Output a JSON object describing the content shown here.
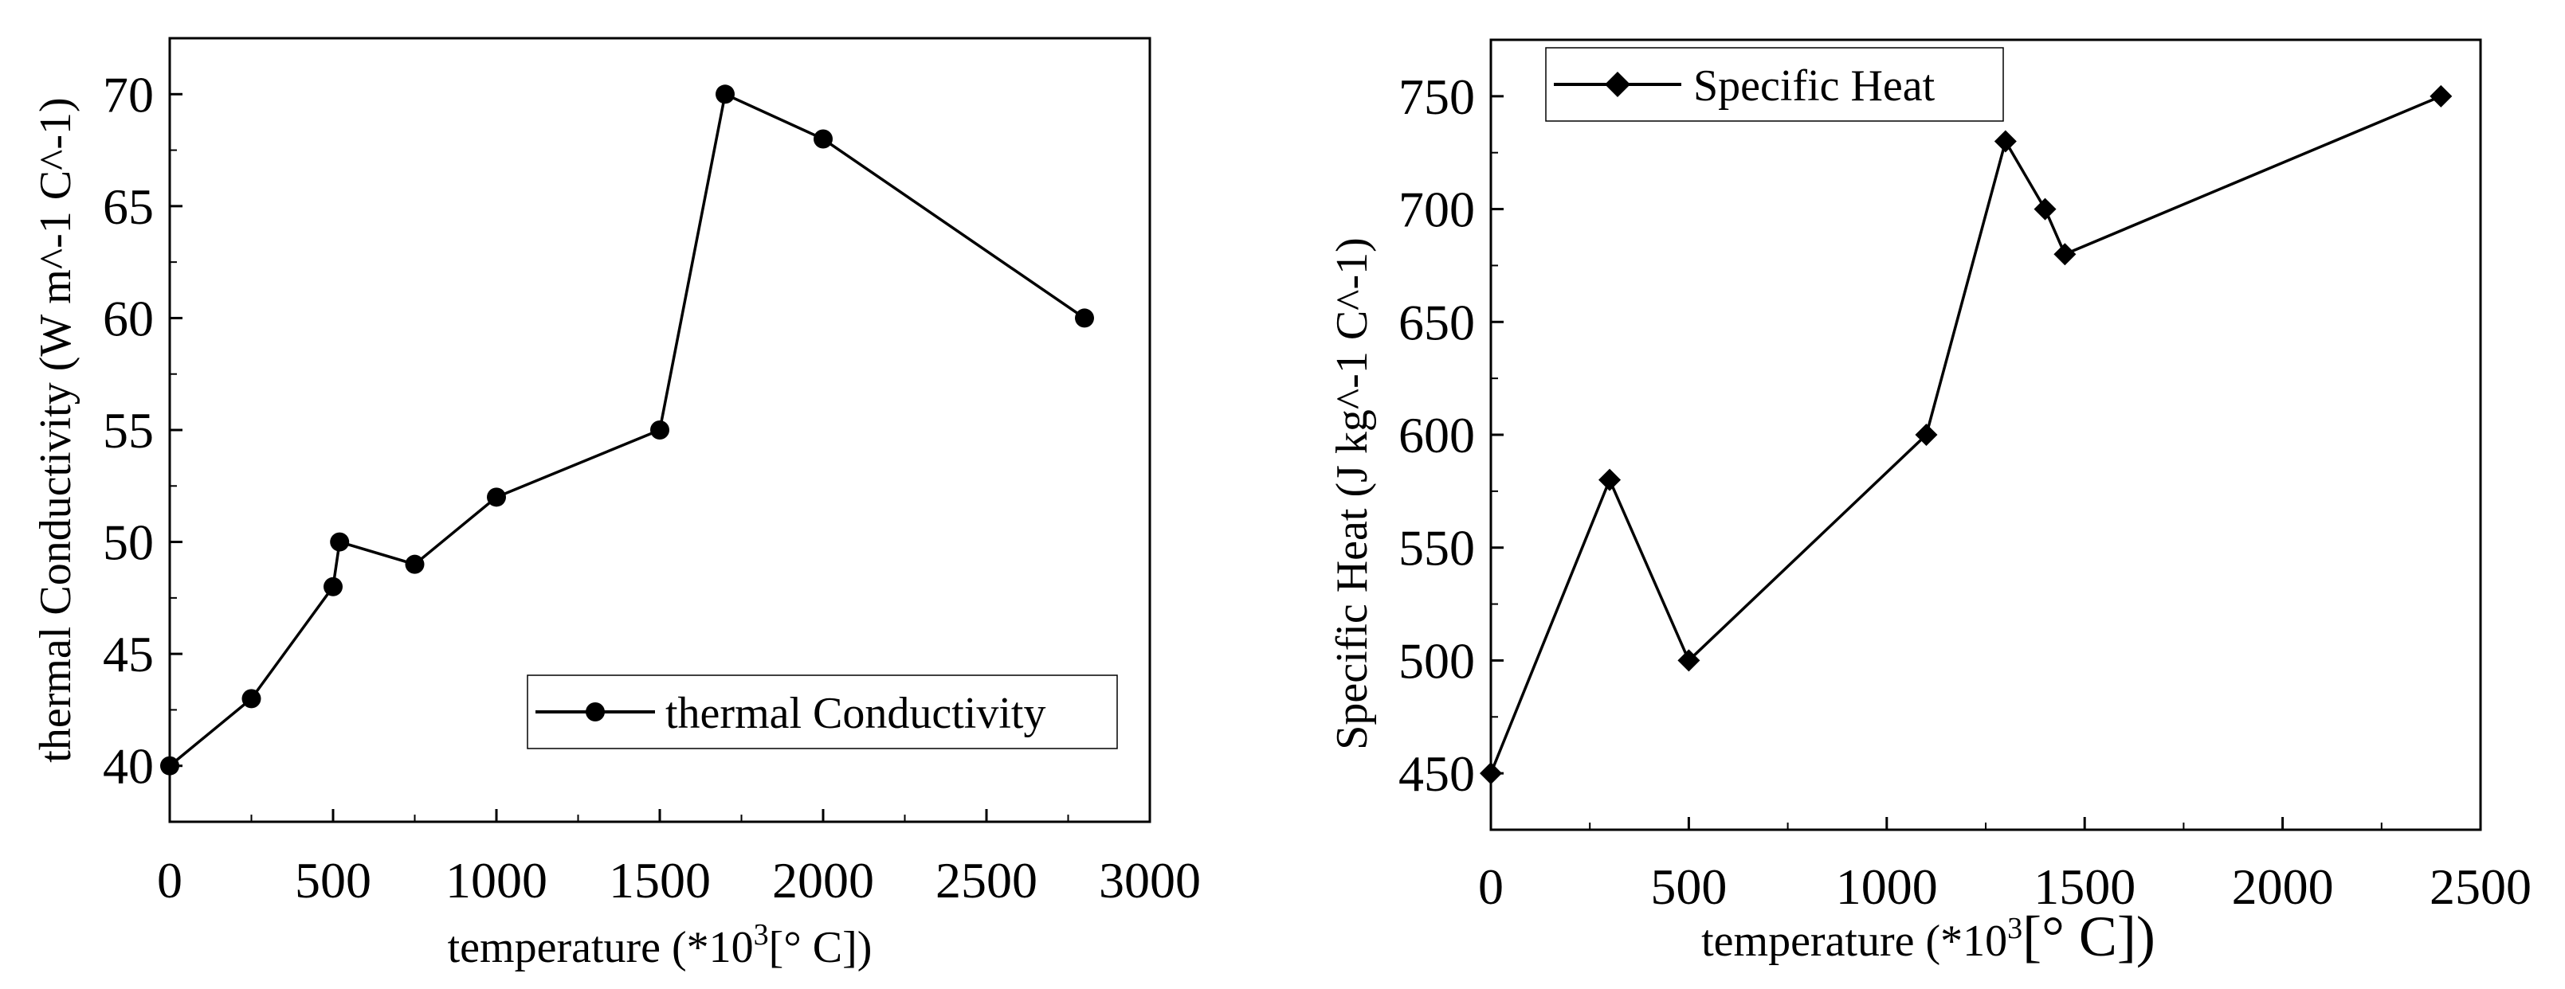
{
  "chart_data": [
    {
      "type": "line",
      "series": [
        {
          "name": "thermal Conductivity",
          "marker": "circle",
          "x": [
            0,
            250,
            500,
            520,
            750,
            1000,
            1500,
            1700,
            2000,
            2800
          ],
          "y": [
            40,
            43,
            48,
            50,
            49,
            52,
            55,
            70,
            68,
            60
          ]
        }
      ],
      "xlabel": "temperature (*10",
      "xlabel_sup": "3",
      "xlabel_tail": "[° C])",
      "ylabel": "thermal Conductivity (W m^-1 C^-1)",
      "xlim": [
        0,
        3000
      ],
      "ylim": [
        37.5,
        72.5
      ],
      "xticks": [
        "0",
        "500",
        "1000",
        "1500",
        "2000",
        "2500",
        "3000"
      ],
      "yticks": [
        "40",
        "45",
        "50",
        "55",
        "60",
        "65",
        "70"
      ],
      "legend": {
        "label": "thermal Conductivity",
        "placement": "bottom-right"
      },
      "grid": false
    },
    {
      "type": "line",
      "series": [
        {
          "name": "Specific Heat",
          "marker": "diamond",
          "x": [
            0,
            300,
            500,
            1100,
            1300,
            1400,
            1450,
            2400
          ],
          "y": [
            450,
            580,
            500,
            600,
            730,
            700,
            680,
            750
          ]
        }
      ],
      "xlabel": "temperature (*10",
      "xlabel_sup": "3",
      "xlabel_tail": "[° C])",
      "ylabel": "Specific Heat (J kg^-1 C^-1)",
      "xlim": [
        0,
        2500
      ],
      "ylim": [
        425,
        775
      ],
      "xticks": [
        "0",
        "500",
        "1000",
        "1500",
        "2000",
        "2500"
      ],
      "yticks": [
        "450",
        "500",
        "550",
        "600",
        "650",
        "700",
        "750"
      ],
      "legend": {
        "label": "Specific Heat",
        "placement": "top-left"
      },
      "grid": false
    }
  ]
}
